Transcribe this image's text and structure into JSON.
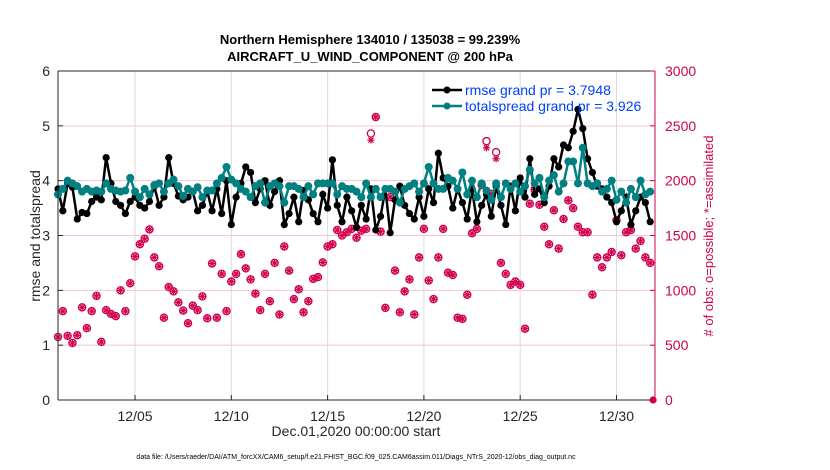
{
  "chart_data": {
    "type": "line",
    "title": [
      "Northern Hemisphere 134010 / 135038 = 99.239%",
      "AIRCRAFT_U_WIND_COMPONENT @ 200 hPa"
    ],
    "xlabel": "Dec.01,2020 00:00:00 start",
    "ylabel": "rmse and totalspread",
    "ylabel_right": "# of obs: o=possible; *=assimilated",
    "footnote": "data file: /Users/raeder/DAI/ATM_forcXX/CAM6_setup/f.e21.FHIST_BGC.f09_025.CAM6assim.011/Diags_NTrS_2020-12/obs_diag_output.nc",
    "xlim": [
      1,
      32
    ],
    "ylim": [
      0,
      6
    ],
    "ylim_right": [
      0,
      3000
    ],
    "grid": true,
    "x_ticks": [
      5,
      10,
      15,
      20,
      25,
      30
    ],
    "x_tick_labels": [
      "12/05",
      "12/10",
      "12/15",
      "12/20",
      "12/25",
      "12/30"
    ],
    "y_ticks": [
      0,
      1,
      2,
      3,
      4,
      5,
      6
    ],
    "y_ticks_right": [
      0,
      500,
      1000,
      1500,
      2000,
      2500,
      3000
    ],
    "legend_position": "top-right",
    "x_step_days": 0.25,
    "x_start_day": 1.0,
    "series": [
      {
        "name": "rmse",
        "legend": "rmse grand pr = 3.7948",
        "color": "#000000",
        "axis": "left",
        "values": [
          3.85,
          3.45,
          3.95,
          3.88,
          3.3,
          3.42,
          3.4,
          3.62,
          3.7,
          3.65,
          4.42,
          3.95,
          3.62,
          3.55,
          3.4,
          3.62,
          3.7,
          3.55,
          3.5,
          3.62,
          3.9,
          3.55,
          3.7,
          4.42,
          3.95,
          3.72,
          3.65,
          3.7,
          3.8,
          3.45,
          3.55,
          3.8,
          3.45,
          3.85,
          3.4,
          4.0,
          3.2,
          3.7,
          3.95,
          4.25,
          4.15,
          3.6,
          3.85,
          4.0,
          3.55,
          3.8,
          4.0,
          3.2,
          3.4,
          3.7,
          3.25,
          3.82,
          3.65,
          3.4,
          3.25,
          3.75,
          3.5,
          4.38,
          3.55,
          3.25,
          3.7,
          3.45,
          3.15,
          3.55,
          3.3,
          3.85,
          3.1,
          3.35,
          3.85,
          3.05,
          3.65,
          3.9,
          3.55,
          3.4,
          3.3,
          3.7,
          3.35,
          3.85,
          3.6,
          4.5,
          4.05,
          3.9,
          3.5,
          3.85,
          3.6,
          3.3,
          3.85,
          3.25,
          3.55,
          3.75,
          3.35,
          3.9,
          3.55,
          3.2,
          3.9,
          3.45,
          4.05,
          3.7,
          4.4,
          3.75,
          3.85,
          3.6,
          3.9,
          4.4,
          4.25,
          4.65,
          4.6,
          4.9,
          5.3,
          4.95,
          4.4,
          4.15,
          3.9,
          3.85,
          3.7,
          3.6,
          3.25,
          3.45,
          3.7,
          3.2,
          3.45,
          3.7,
          3.6,
          3.25
        ]
      },
      {
        "name": "totalspread",
        "legend": "totalspread grand pr = 3.926",
        "color": "#008080",
        "axis": "left",
        "values": [
          3.75,
          3.85,
          4.0,
          3.95,
          3.9,
          3.8,
          3.85,
          3.8,
          3.82,
          3.8,
          3.95,
          3.85,
          3.82,
          3.8,
          3.82,
          4.05,
          3.8,
          3.7,
          3.85,
          3.75,
          3.92,
          3.95,
          3.8,
          3.95,
          4.02,
          3.9,
          3.72,
          3.85,
          3.8,
          3.88,
          3.7,
          3.82,
          3.82,
          3.95,
          4.05,
          4.25,
          4.02,
          3.95,
          3.85,
          3.8,
          3.7,
          3.9,
          3.95,
          3.6,
          3.9,
          3.95,
          3.9,
          3.6,
          3.9,
          3.9,
          3.85,
          3.7,
          3.9,
          3.75,
          3.95,
          3.95,
          3.95,
          3.95,
          3.75,
          3.9,
          3.85,
          3.85,
          3.8,
          3.7,
          3.95,
          3.7,
          3.85,
          3.7,
          3.85,
          3.85,
          3.8,
          3.6,
          3.85,
          3.9,
          3.95,
          3.8,
          3.95,
          4.25,
          3.95,
          3.85,
          3.85,
          4.05,
          4.0,
          3.85,
          4.15,
          3.75,
          4.0,
          3.7,
          3.95,
          3.82,
          3.65,
          3.95,
          3.7,
          3.95,
          3.85,
          3.95,
          3.8,
          3.9,
          4.2,
          3.95,
          4.05,
          3.7,
          4.0,
          4.1,
          3.8,
          3.95,
          4.35,
          4.35,
          3.95,
          4.6,
          3.95,
          3.9,
          3.95,
          3.8,
          3.85,
          4.0,
          3.65,
          3.8,
          3.6,
          3.85,
          3.7,
          4.0,
          3.75,
          3.8
        ]
      },
      {
        "name": "possible_obs",
        "marker": "o",
        "color": "#d1004f",
        "axis": "right",
        "values": [
          575,
          810,
          585,
          520,
          590,
          845,
          655,
          810,
          950,
          530,
          820,
          785,
          765,
          1000,
          810,
          1065,
          1310,
          1420,
          1470,
          1555,
          1300,
          1220,
          750,
          1030,
          990,
          890,
          815,
          700,
          860,
          820,
          945,
          745,
          1245,
          750,
          1150,
          810,
          1080,
          1150,
          1330,
          1200,
          1100,
          970,
          820,
          1150,
          900,
          1250,
          780,
          1400,
          1180,
          920,
          1010,
          800,
          900,
          1105,
          1120,
          1255,
          1400,
          1420,
          1550,
          1500,
          1530,
          1560,
          1480,
          1545,
          1560,
          2430,
          2580,
          1535,
          840,
          1850,
          1180,
          800,
          990,
          1100,
          780,
          1300,
          1560,
          1090,
          920,
          1300,
          1560,
          1160,
          1140,
          750,
          740,
          960,
          1520,
          1560,
          1960,
          2360,
          1880,
          2260,
          1250,
          1150,
          1050,
          1080,
          1050,
          650,
          1790,
          1920,
          1780,
          1580,
          1420,
          1730,
          1380,
          1650,
          1820,
          1750,
          1580,
          1530,
          1530,
          960,
          1300,
          1210,
          1300,
          1350,
          1640,
          1320,
          1530,
          1550,
          1380,
          1450,
          1300,
          1250
        ]
      },
      {
        "name": "assimilated_obs",
        "marker": "*",
        "color": "#d1004f",
        "axis": "right",
        "values": [
          575,
          810,
          585,
          520,
          590,
          845,
          655,
          810,
          950,
          530,
          820,
          785,
          765,
          1000,
          810,
          1065,
          1310,
          1420,
          1470,
          1555,
          1300,
          1220,
          750,
          1030,
          990,
          890,
          815,
          700,
          860,
          820,
          945,
          745,
          1245,
          750,
          1150,
          810,
          1080,
          1150,
          1330,
          1200,
          1100,
          970,
          820,
          1150,
          900,
          1250,
          780,
          1400,
          1180,
          920,
          1010,
          800,
          900,
          1105,
          1120,
          1255,
          1400,
          1420,
          1550,
          1500,
          1530,
          1560,
          1480,
          1545,
          1560,
          2370,
          2580,
          1535,
          840,
          1850,
          1180,
          800,
          990,
          1100,
          780,
          1300,
          1560,
          1090,
          920,
          1300,
          1560,
          1160,
          1140,
          750,
          740,
          960,
          1520,
          1560,
          1960,
          2300,
          1880,
          2200,
          1250,
          1150,
          1050,
          1080,
          1050,
          650,
          1790,
          1920,
          1780,
          1580,
          1420,
          1730,
          1380,
          1650,
          1820,
          1750,
          1580,
          1530,
          1530,
          960,
          1300,
          1210,
          1300,
          1350,
          1640,
          1320,
          1530,
          1550,
          1380,
          1450,
          1300,
          1250
        ]
      }
    ],
    "final_obs_point": {
      "day": 31.9,
      "value": 0
    }
  }
}
